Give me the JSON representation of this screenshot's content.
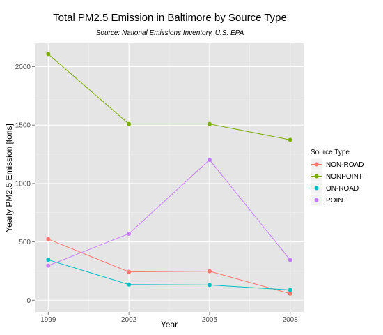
{
  "chart_data": {
    "type": "line",
    "title": "Total PM2.5 Emission in Baltimore by Source Type",
    "subtitle": "Source: National Emissions Inventory, U.S. EPA",
    "xlabel": "Year",
    "ylabel": "Yearly PM2.5 Emission [tons]",
    "x": [
      1999,
      2002,
      2005,
      2008
    ],
    "x_ticks": [
      "1999",
      "2002",
      "2005",
      "2008"
    ],
    "y_ticks": [
      "0",
      "500",
      "1000",
      "1500",
      "2000"
    ],
    "ylim": [
      0,
      2200
    ],
    "grid": true,
    "legend": {
      "title": "Source Type",
      "placement": "right"
    },
    "series": [
      {
        "name": "NON-ROAD",
        "color": "#F8766D",
        "values": [
          522.9,
          242.8,
          248.9,
          55.8
        ]
      },
      {
        "name": "NONPOINT",
        "color": "#7CAE00",
        "values": [
          2107.6,
          1509.5,
          1509.5,
          1373.2
        ]
      },
      {
        "name": "ON-ROAD",
        "color": "#00BFC4",
        "values": [
          346.8,
          134.3,
          130.4,
          88.3
        ]
      },
      {
        "name": "POINT",
        "color": "#C77CFF",
        "values": [
          296.8,
          569.3,
          1202.5,
          344.98
        ]
      }
    ]
  }
}
